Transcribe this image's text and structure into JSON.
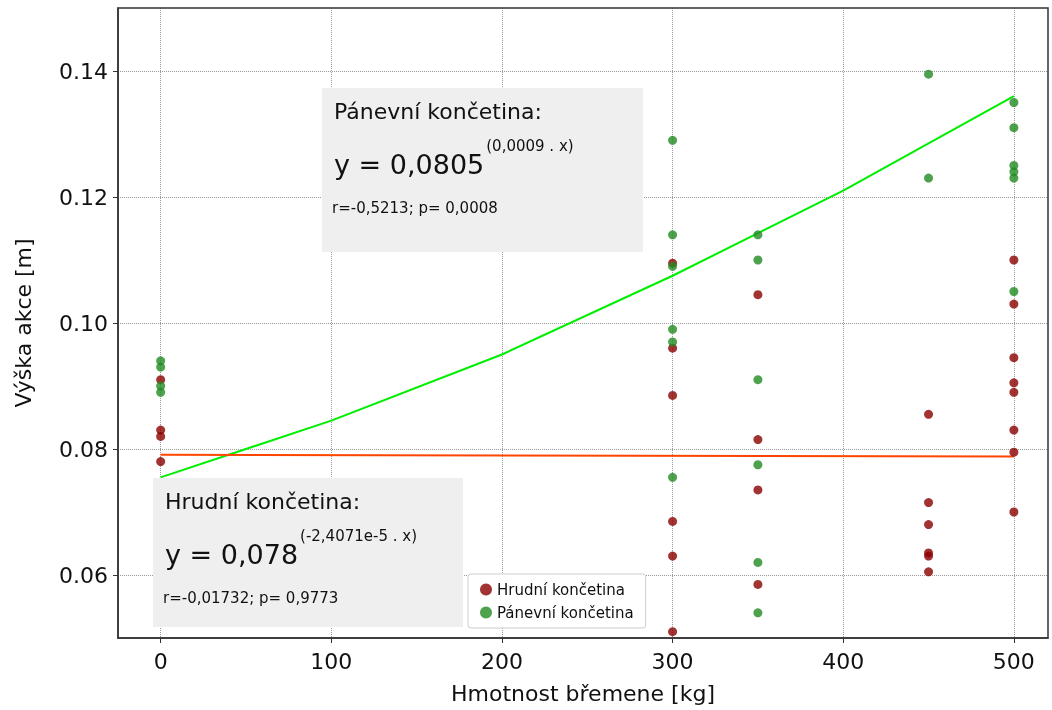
{
  "chart_data": {
    "type": "scatter",
    "xlabel": "Hmotnost břemene [kg]",
    "ylabel": "Výška akce [m]",
    "xlim": [
      -25,
      520
    ],
    "xticks": [
      0,
      100,
      200,
      300,
      400,
      500
    ],
    "ylim": [
      0.05,
      0.15
    ],
    "yticks": [
      {
        "value": 0.06,
        "label": "0.06"
      },
      {
        "value": 0.08,
        "label": "0.08"
      },
      {
        "value": 0.1,
        "label": "0.10"
      },
      {
        "value": 0.12,
        "label": "0.12"
      },
      {
        "value": 0.14,
        "label": "0.14"
      }
    ],
    "grid": true,
    "legend": "bottom",
    "marker": "circle",
    "series": [
      {
        "name": "Hrudní končetina",
        "color": "#8b0000",
        "x": [
          0,
          0,
          0,
          0,
          300,
          300,
          300,
          300,
          300,
          300,
          350,
          350,
          350,
          350,
          450,
          450,
          450,
          450,
          450,
          450,
          500,
          500,
          500,
          500,
          500,
          500,
          500,
          500
        ],
        "values": [
          0.091,
          0.083,
          0.082,
          0.078,
          0.1095,
          0.096,
          0.0885,
          0.0685,
          0.063,
          0.051,
          0.1045,
          0.0815,
          0.0735,
          0.0585,
          0.0855,
          0.0715,
          0.068,
          0.0635,
          0.063,
          0.0605,
          0.11,
          0.103,
          0.0945,
          0.0905,
          0.089,
          0.083,
          0.0795,
          0.07
        ]
      },
      {
        "name": "Pánevní končetina",
        "color": "#228b22",
        "x": [
          0,
          0,
          0,
          0,
          300,
          300,
          300,
          300,
          300,
          300,
          350,
          350,
          350,
          350,
          350,
          350,
          450,
          450,
          500,
          500,
          500,
          500,
          500,
          500
        ],
        "values": [
          0.094,
          0.093,
          0.09,
          0.089,
          0.129,
          0.114,
          0.109,
          0.099,
          0.097,
          0.0755,
          0.114,
          0.11,
          0.091,
          0.0775,
          0.062,
          0.054,
          0.1395,
          0.123,
          0.135,
          0.131,
          0.125,
          0.124,
          0.123,
          0.105
        ]
      },
      {
        "type": "line",
        "marker": "none",
        "color": "#00ee00",
        "x": [
          0,
          100,
          200,
          300,
          400,
          500
        ],
        "values": [
          0.0755,
          0.0845,
          0.095,
          0.1075,
          0.121,
          0.136
        ]
      },
      {
        "type": "line",
        "marker": "none",
        "color": "#ff4500",
        "x": [
          0,
          500
        ],
        "values": [
          0.0791,
          0.0788
        ]
      }
    ],
    "annotations": [
      "Pánevní končetina:",
      "y = 0,0805$^{(0,0009 . x)}$",
      "r=-0,5213; p= 0,0008",
      "Hrudní končetina:",
      "y = 0,078$^{(-2,4071e-5 . x)}$",
      "r=-0,01732; p= 0,9773"
    ]
  }
}
